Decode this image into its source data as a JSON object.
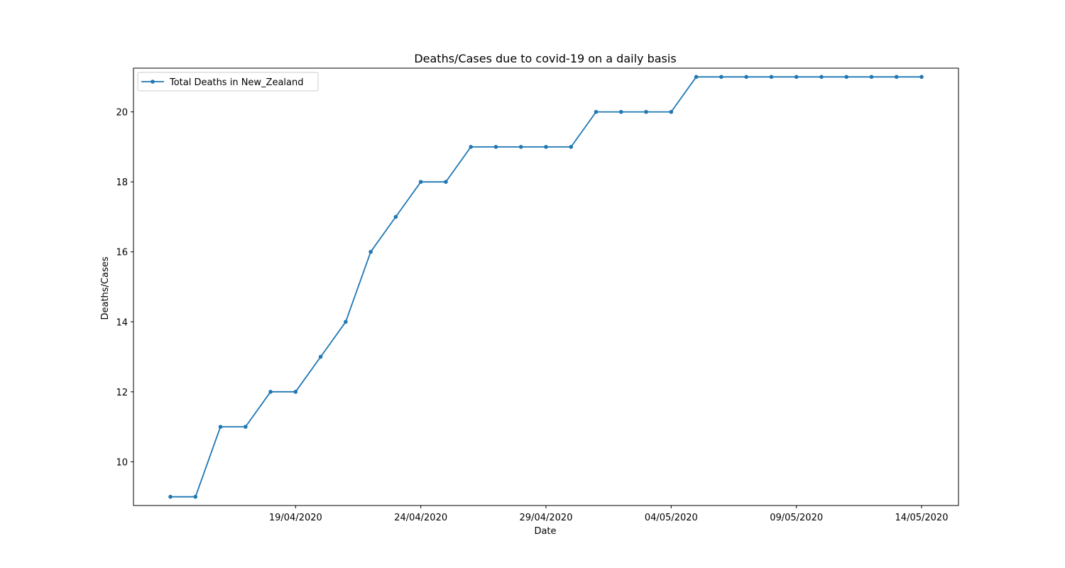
{
  "chart_data": {
    "type": "line",
    "title": "Deaths/Cases due to covid-19 on a daily basis",
    "xlabel": "Date",
    "ylabel": "Deaths/Cases",
    "x": [
      "14/04/2020",
      "15/04/2020",
      "16/04/2020",
      "17/04/2020",
      "18/04/2020",
      "19/04/2020",
      "20/04/2020",
      "21/04/2020",
      "22/04/2020",
      "23/04/2020",
      "24/04/2020",
      "25/04/2020",
      "26/04/2020",
      "27/04/2020",
      "28/04/2020",
      "29/04/2020",
      "30/04/2020",
      "01/05/2020",
      "02/05/2020",
      "03/05/2020",
      "04/05/2020",
      "05/05/2020",
      "06/05/2020",
      "07/05/2020",
      "08/05/2020",
      "09/05/2020",
      "10/05/2020",
      "11/05/2020",
      "12/05/2020",
      "13/05/2020",
      "14/05/2020"
    ],
    "x_tick_labels": [
      "19/04/2020",
      "24/04/2020",
      "29/04/2020",
      "04/05/2020",
      "09/05/2020",
      "14/05/2020"
    ],
    "y_ticks": [
      10,
      12,
      14,
      16,
      18,
      20
    ],
    "ylim": [
      8.75,
      21.25
    ],
    "series": [
      {
        "name": "Total Deaths in New_Zealand",
        "color": "#1f77b4",
        "marker": "circle",
        "values": [
          9,
          9,
          11,
          11,
          12,
          12,
          13,
          14,
          16,
          17,
          18,
          18,
          19,
          19,
          19,
          19,
          19,
          20,
          20,
          20,
          20,
          21,
          21,
          21,
          21,
          21,
          21,
          21,
          21,
          21,
          21
        ]
      }
    ],
    "legend_position": "top-left",
    "grid": false
  }
}
